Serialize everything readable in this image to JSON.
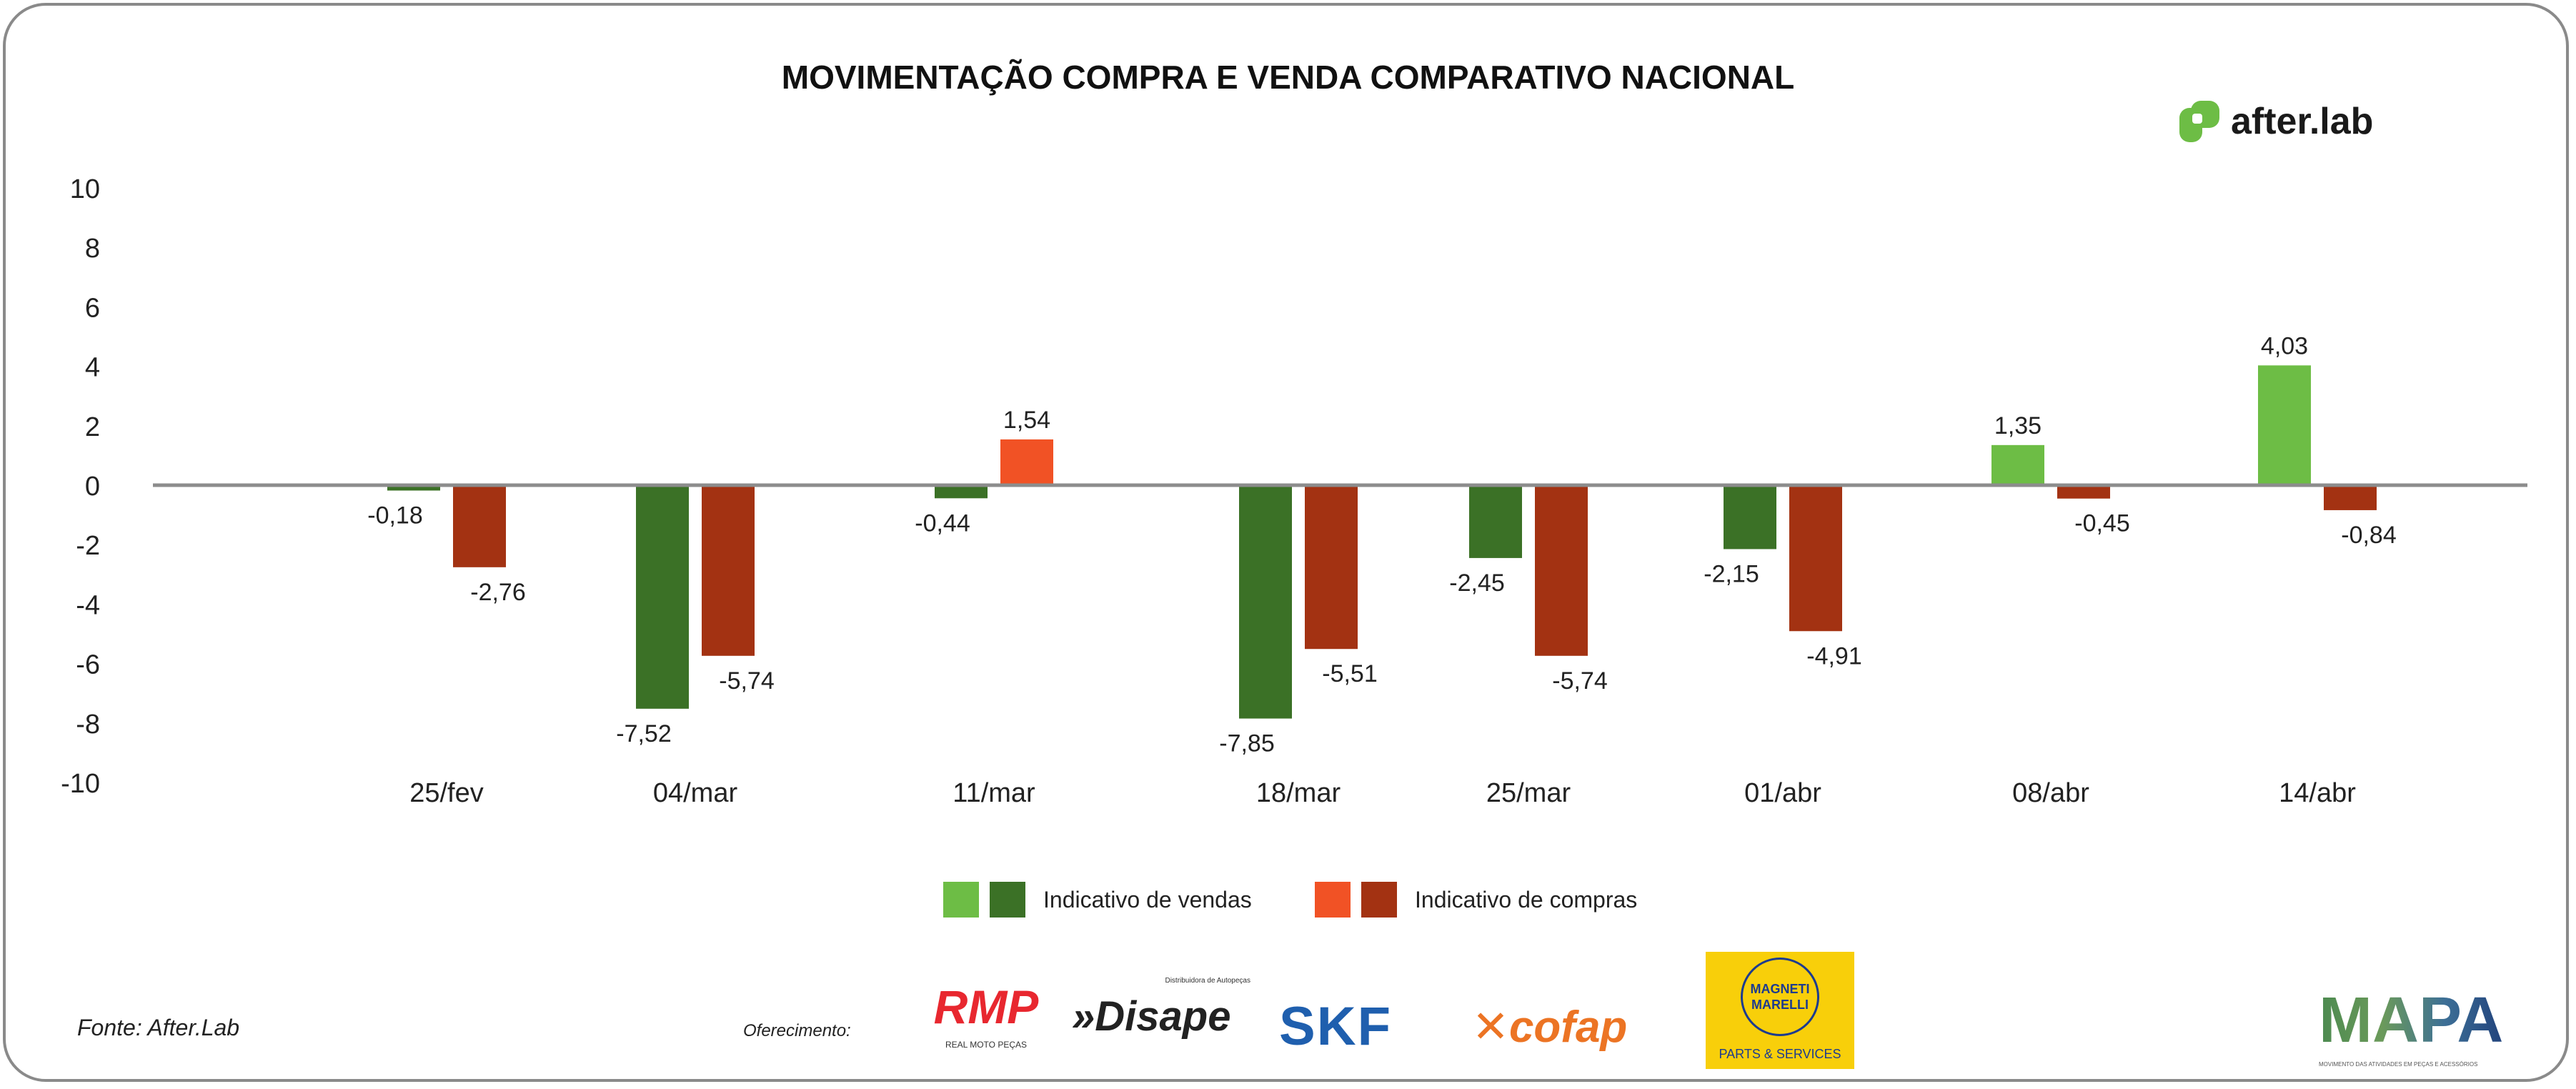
{
  "chart_data": {
    "type": "bar",
    "title": "MOVIMENTAÇÃO COMPRA E VENDA COMPARATIVO NACIONAL",
    "categories": [
      "25/fev",
      "04/mar",
      "11/mar",
      "18/mar",
      "25/mar",
      "01/abr",
      "08/abr",
      "14/abr"
    ],
    "series": [
      {
        "name": "Indicativo de vendas",
        "values": [
          -0.18,
          -7.52,
          -0.44,
          -7.85,
          -2.45,
          -2.15,
          1.35,
          4.03
        ],
        "labels": [
          "-0,18",
          "-7,52",
          "-0,44",
          "-7,85",
          "-2,45",
          "-2,15",
          "1,35",
          "4,03"
        ],
        "color_positive": "#6dbd45",
        "color_negative": "#3b7126"
      },
      {
        "name": "Indicativo de compras",
        "values": [
          -2.76,
          -5.74,
          1.54,
          -5.51,
          -5.74,
          -4.91,
          -0.45,
          -0.84
        ],
        "labels": [
          "-2,76",
          "-5,74",
          "1,54",
          "-5,51",
          "-5,74",
          "-4,91",
          "-0,45",
          "-0,84"
        ],
        "color_positive": "#f15225",
        "color_negative": "#a33212"
      }
    ],
    "yticks": [
      "10",
      "8",
      "6",
      "4",
      "2",
      "0",
      "-2",
      "-4",
      "-6",
      "-8",
      "-10"
    ],
    "ylim": [
      -10,
      10
    ],
    "xlabel": "",
    "ylabel": "",
    "grid": false,
    "legend": "bottom-center"
  },
  "brand": {
    "name": "after.lab",
    "color": "#6dbd45"
  },
  "footer": {
    "source": "Fonte: After.Lab",
    "sponsor_label": "Oferecimento:",
    "sponsors": [
      "RMP",
      "REAL MOTO PEÇAS",
      "Disape",
      "Distribuidora de Autopeças",
      "SKF",
      "cofap",
      "MAGNETI MARELLI",
      "PARTS & SERVICES"
    ],
    "mapa": "MAPA",
    "mapa_tagline": "MOVIMENTO DAS ATIVIDADES EM PEÇAS E ACESSÓRIOS"
  }
}
